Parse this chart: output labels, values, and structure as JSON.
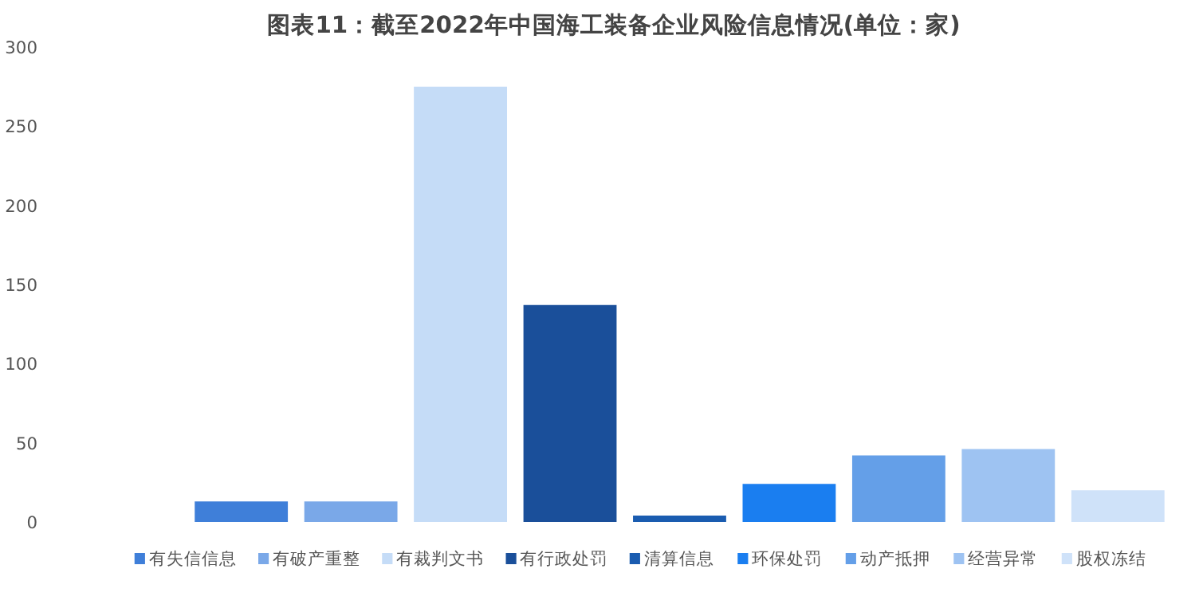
{
  "chart_data": {
    "type": "bar",
    "title": "图表11：截至2022年中国海工装备企业风险信息情况(单位：家)",
    "categories": [
      null
    ],
    "series": [
      {
        "name": "有失信信息",
        "color": "#3f7fd9",
        "values": [
          13
        ]
      },
      {
        "name": "有破产重整",
        "color": "#7aa8e8",
        "values": [
          13
        ]
      },
      {
        "name": "有裁判文书",
        "color": "#c5dcf7",
        "values": [
          275
        ]
      },
      {
        "name": "有行政处罚",
        "color": "#1a4f9a",
        "values": [
          137
        ]
      },
      {
        "name": "清算信息",
        "color": "#1a5cb0",
        "values": [
          4
        ]
      },
      {
        "name": "环保处罚",
        "color": "#1a7ef0",
        "values": [
          24
        ]
      },
      {
        "name": "动产抵押",
        "color": "#649fe8",
        "values": [
          42
        ]
      },
      {
        "name": "经营异常",
        "color": "#9ec3f2",
        "values": [
          46
        ]
      },
      {
        "name": "股权冻结",
        "color": "#cfe2f9",
        "values": [
          20
        ]
      }
    ],
    "ylim": [
      0,
      300
    ],
    "yticks": [
      0,
      50,
      100,
      150,
      200,
      250,
      300
    ],
    "grid": false,
    "legend": "bottom"
  }
}
